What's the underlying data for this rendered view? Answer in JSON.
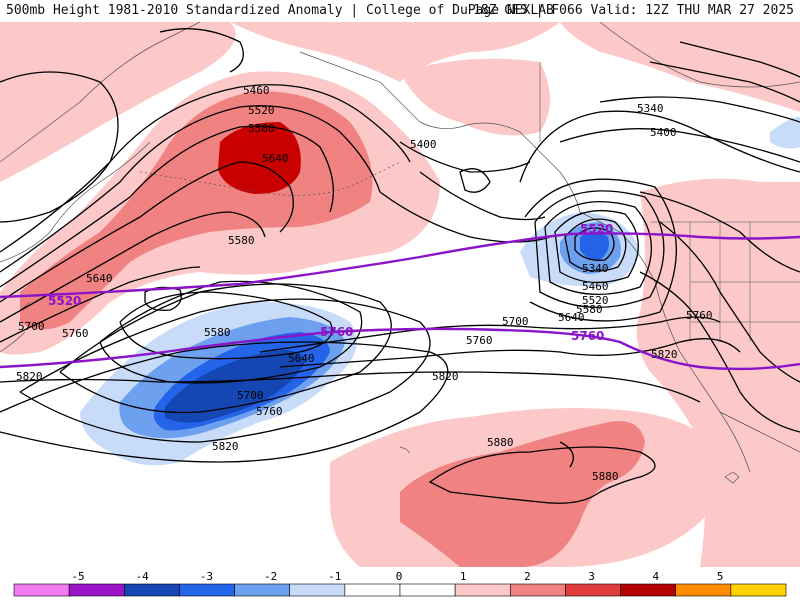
{
  "header": {
    "left": "500mb Height 1981-2010 Standardized Anomaly | College of DuPage NEXLAB",
    "right": "18Z GFS | F066 Valid: 12Z THU MAR 27 2025"
  },
  "colorbar": {
    "ticks": [
      "-5",
      "-4",
      "-3",
      "-2",
      "-1",
      "0",
      "1",
      "2",
      "3",
      "4",
      "5"
    ],
    "colors": [
      "#f07cf0",
      "#9a14c8",
      "#1446b4",
      "#2364e8",
      "#6ea0f0",
      "#c8dcfa",
      "#ffffff",
      "#ffffff",
      "#fcc8c8",
      "#f08282",
      "#e03c3c",
      "#b40000",
      "#ff8c00",
      "#ffd200"
    ]
  },
  "contour_labels": {
    "l5460": "5460",
    "l5520a": "5520",
    "l5580a": "5580",
    "l5640a": "5640",
    "l5580b": "5580",
    "l5640b": "5640",
    "l5700a": "5700",
    "l5760a": "5760",
    "l5820a": "5820",
    "l5580c": "5580",
    "l5640c": "5640",
    "l5700b": "5700",
    "l5760b": "5760",
    "l5820b": "5820",
    "l5400a": "5400",
    "l5340a": "5340",
    "l5400b": "5400",
    "l5340b": "5340",
    "l5460b": "5460",
    "l5520b": "5520",
    "l5580d": "5580",
    "l5640d": "5640",
    "l5700c": "5700",
    "l5760c": "5760",
    "l5820c": "5820",
    "l5760d": "5760",
    "l5820d": "5820",
    "l5880a": "5880",
    "l5880b": "5880"
  },
  "purple_labels": {
    "p5520a": "5520",
    "p5760a": "5760",
    "p5520b": "5520",
    "p5760b": "5760"
  }
}
